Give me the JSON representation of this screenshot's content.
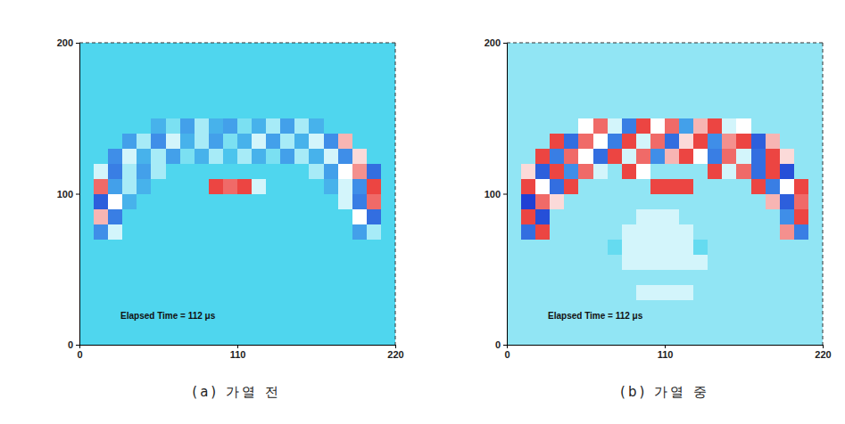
{
  "chart_data": [
    {
      "type": "heatmap",
      "title": "(a) 가열 전",
      "annotations": [
        "Elapsed Time = 112 μs"
      ],
      "xlim": [
        0,
        220
      ],
      "ylim": [
        0,
        200
      ],
      "xticks": [
        0,
        110,
        220
      ],
      "yticks": [
        0,
        100,
        200
      ],
      "z": [
        [
          0,
          0,
          0,
          0,
          0,
          0,
          0,
          0,
          0,
          0,
          0,
          0,
          0,
          0,
          0,
          0,
          0,
          0,
          0,
          0,
          0,
          0
        ],
        [
          0,
          0,
          0,
          0,
          0,
          0,
          0,
          0,
          0,
          0,
          0,
          0,
          0,
          0,
          0,
          0,
          0,
          0,
          0,
          0,
          0,
          0
        ],
        [
          0,
          0,
          0,
          0,
          0,
          0,
          0,
          0,
          0,
          0,
          0,
          0,
          0,
          0,
          0,
          0,
          0,
          0,
          0,
          0,
          0,
          0
        ],
        [
          0,
          0,
          0,
          0,
          0,
          0,
          0,
          0,
          0,
          0,
          0,
          0,
          0,
          0,
          0,
          0,
          0,
          0,
          0,
          0,
          0,
          0
        ],
        [
          0,
          0,
          0,
          0,
          0,
          0,
          0,
          0,
          0,
          0,
          0,
          0,
          0,
          0,
          0,
          0,
          0,
          0,
          0,
          0,
          0,
          0
        ],
        [
          0,
          0,
          0,
          0,
          0,
          0,
          0,
          0,
          0,
          0,
          0,
          0,
          0,
          0,
          0,
          0,
          0,
          0,
          0,
          0,
          0,
          0
        ],
        [
          0,
          0,
          0,
          0,
          0,
          0,
          0,
          0,
          0,
          0,
          0,
          0,
          0,
          0,
          0,
          0,
          0,
          0,
          0,
          0,
          0,
          0
        ],
        [
          0,
          -0.4,
          0.3,
          0,
          0,
          0,
          0,
          0,
          0,
          0,
          0,
          0,
          0,
          0,
          0,
          0,
          0,
          0,
          0,
          -0.3,
          0.2,
          0
        ],
        [
          0,
          0.6,
          -0.5,
          0,
          0,
          0,
          0,
          0,
          0,
          0,
          0,
          0,
          0,
          0,
          0,
          0,
          0,
          0,
          0,
          0.4,
          -0.6,
          0
        ],
        [
          0,
          -0.7,
          0.4,
          -0.2,
          0,
          0,
          0,
          0,
          0,
          0,
          0,
          0,
          0,
          0,
          0,
          0,
          0,
          0,
          0.3,
          -0.5,
          0.8,
          0
        ],
        [
          0,
          0.8,
          -0.3,
          0.2,
          -0.2,
          0,
          0,
          0,
          0,
          0.9,
          0.8,
          0.9,
          0.3,
          0,
          0,
          0,
          0,
          -0.2,
          0.3,
          -0.4,
          0.9,
          0
        ],
        [
          0,
          0.3,
          -0.5,
          0.2,
          -0.3,
          0.2,
          0,
          0,
          0,
          0,
          0,
          0,
          0,
          0,
          0,
          0,
          0.2,
          -0.3,
          0.4,
          0.7,
          -0.6,
          0
        ],
        [
          0,
          0,
          -0.4,
          0.3,
          -0.2,
          0.2,
          -0.3,
          0.1,
          -0.2,
          0.2,
          -0.1,
          0.2,
          -0.2,
          0.1,
          -0.3,
          0.2,
          -0.2,
          0.3,
          -0.4,
          0.5,
          0,
          0
        ],
        [
          0,
          0,
          0,
          -0.3,
          0.2,
          -0.4,
          0.3,
          -0.2,
          0.2,
          -0.3,
          0.1,
          -0.2,
          0.3,
          -0.3,
          0.2,
          -0.2,
          0.3,
          -0.4,
          0.6,
          0,
          0,
          0
        ],
        [
          0,
          0,
          0,
          0,
          0,
          -0.2,
          0.1,
          -0.3,
          0.2,
          -0.2,
          -0.3,
          0.1,
          -0.2,
          0.2,
          -0.3,
          0.2,
          -0.2,
          0,
          0,
          0,
          0,
          0
        ],
        [
          0,
          0,
          0,
          0,
          0,
          0,
          0,
          0,
          0,
          0,
          0,
          0,
          0,
          0,
          0,
          0,
          0,
          0,
          0,
          0,
          0,
          0
        ],
        [
          0,
          0,
          0,
          0,
          0,
          0,
          0,
          0,
          0,
          0,
          0,
          0,
          0,
          0,
          0,
          0,
          0,
          0,
          0,
          0,
          0,
          0
        ],
        [
          0,
          0,
          0,
          0,
          0,
          0,
          0,
          0,
          0,
          0,
          0,
          0,
          0,
          0,
          0,
          0,
          0,
          0,
          0,
          0,
          0,
          0
        ],
        [
          0,
          0,
          0,
          0,
          0,
          0,
          0,
          0,
          0,
          0,
          0,
          0,
          0,
          0,
          0,
          0,
          0,
          0,
          0,
          0,
          0,
          0
        ],
        [
          0,
          0,
          0,
          0,
          0,
          0,
          0,
          0,
          0,
          0,
          0,
          0,
          0,
          0,
          0,
          0,
          0,
          0,
          0,
          0,
          0,
          0
        ]
      ]
    },
    {
      "type": "heatmap",
      "title": "(b) 가열 중",
      "annotations": [
        "Elapsed Time = 112 μs"
      ],
      "xlim": [
        0,
        220
      ],
      "ylim": [
        0,
        200
      ],
      "xticks": [
        0,
        110,
        220
      ],
      "yticks": [
        0,
        100,
        200
      ],
      "z": [
        [
          0.15,
          0.15,
          0.15,
          0.15,
          0.15,
          0.15,
          0.15,
          0.15,
          0.15,
          0.15,
          0.15,
          0.15,
          0.15,
          0.15,
          0.15,
          0.15,
          0.15,
          0.15,
          0.15,
          0.15,
          0.15,
          0.15
        ],
        [
          0.15,
          0.15,
          0.15,
          0.15,
          0.15,
          0.15,
          0.15,
          0.15,
          0.15,
          0.15,
          0.15,
          0.15,
          0.15,
          0.15,
          0.15,
          0.15,
          0.15,
          0.15,
          0.15,
          0.15,
          0.15,
          0.15
        ],
        [
          0.15,
          0.15,
          0.15,
          0.15,
          0.15,
          0.15,
          0.15,
          0.15,
          0.15,
          0.15,
          0.15,
          0.15,
          0.15,
          0.15,
          0.15,
          0.15,
          0.15,
          0.15,
          0.15,
          0.15,
          0.15,
          0.15
        ],
        [
          0.15,
          0.15,
          0.15,
          0.15,
          0.15,
          0.15,
          0.15,
          0.15,
          0.15,
          0.3,
          0.3,
          0.3,
          0.3,
          0.15,
          0.15,
          0.15,
          0.15,
          0.15,
          0.15,
          0.15,
          0.15,
          0.15
        ],
        [
          0.15,
          0.15,
          0.15,
          0.15,
          0.15,
          0.15,
          0.15,
          0.15,
          0.15,
          0.15,
          0.15,
          0.15,
          0.15,
          0.15,
          0.15,
          0.15,
          0.15,
          0.15,
          0.15,
          0.15,
          0.15,
          0.15
        ],
        [
          0.15,
          0.15,
          0.15,
          0.15,
          0.15,
          0.15,
          0.15,
          0.15,
          0.3,
          0.3,
          0.3,
          0.3,
          0.3,
          0.3,
          0.15,
          0.15,
          0.15,
          0.15,
          0.15,
          0.15,
          0.15,
          0.15
        ],
        [
          0.15,
          0.15,
          0.15,
          0.15,
          0.15,
          0.15,
          0.15,
          0.05,
          0.3,
          0.3,
          0.3,
          0.3,
          0.3,
          0.05,
          0.15,
          0.15,
          0.15,
          0.15,
          0.15,
          0.15,
          0.15,
          0.15
        ],
        [
          0.15,
          -0.6,
          0.9,
          0.15,
          0.15,
          0.15,
          0.15,
          0.15,
          0.3,
          0.3,
          0.3,
          0.3,
          0.3,
          0.15,
          0.15,
          0.15,
          0.15,
          0.15,
          0.15,
          0.7,
          -0.5,
          0.15
        ],
        [
          0.15,
          0.9,
          -0.8,
          0.15,
          0.15,
          0.15,
          0.15,
          0.15,
          0.15,
          0.3,
          0.3,
          0.3,
          0.15,
          0.15,
          0.15,
          0.15,
          0.15,
          0.15,
          0.15,
          -0.4,
          0.9,
          0.15
        ],
        [
          0.15,
          -0.9,
          0.8,
          0.5,
          0.15,
          0.15,
          0.15,
          0.15,
          0.15,
          0.15,
          0.15,
          0.15,
          0.15,
          0.15,
          0.15,
          0.15,
          0.15,
          0.15,
          0.6,
          -0.7,
          0.8,
          0.15
        ],
        [
          0.15,
          0.9,
          0.4,
          -0.6,
          0.9,
          0.15,
          0.15,
          0.15,
          0.15,
          0.15,
          0.9,
          0.9,
          0.9,
          0.15,
          0.15,
          0.15,
          0.15,
          0.9,
          -0.5,
          0.4,
          0.9,
          0.15
        ],
        [
          0.15,
          0.5,
          -0.7,
          0.9,
          -0.4,
          0.8,
          0.3,
          0.15,
          0.9,
          0.4,
          0.15,
          0.15,
          0.15,
          0.15,
          0.9,
          0.3,
          0.8,
          -0.6,
          0.9,
          -0.8,
          0.15,
          0.15
        ],
        [
          0.15,
          0.15,
          0.9,
          -0.5,
          0.8,
          0.4,
          -0.6,
          0.9,
          0.3,
          0.8,
          -0.4,
          0.6,
          0.9,
          0.4,
          -0.5,
          0.8,
          0.3,
          -0.6,
          0.9,
          0.5,
          0.15,
          0.15
        ],
        [
          0.15,
          0.15,
          0.15,
          0.9,
          -0.6,
          0.8,
          0.4,
          -0.5,
          0.9,
          0.3,
          0.8,
          -0.6,
          0.5,
          0.9,
          -0.4,
          0.7,
          0.9,
          -0.7,
          0.6,
          0.15,
          0.15,
          0.15
        ],
        [
          0.15,
          0.15,
          0.15,
          0.15,
          0.15,
          0.4,
          0.8,
          0.3,
          -0.5,
          0.9,
          0.4,
          0.8,
          -0.3,
          0.6,
          0.9,
          0.3,
          0.4,
          0.15,
          0.15,
          0.15,
          0.15,
          0.15
        ],
        [
          0.15,
          0.15,
          0.15,
          0.15,
          0.15,
          0.15,
          0.15,
          0.15,
          0.15,
          0.15,
          0.15,
          0.15,
          0.15,
          0.15,
          0.15,
          0.15,
          0.15,
          0.15,
          0.15,
          0.15,
          0.15,
          0.15
        ],
        [
          0.15,
          0.15,
          0.15,
          0.15,
          0.15,
          0.15,
          0.15,
          0.15,
          0.15,
          0.15,
          0.15,
          0.15,
          0.15,
          0.15,
          0.15,
          0.15,
          0.15,
          0.15,
          0.15,
          0.15,
          0.15,
          0.15
        ],
        [
          0.15,
          0.15,
          0.15,
          0.15,
          0.15,
          0.15,
          0.15,
          0.15,
          0.15,
          0.15,
          0.15,
          0.15,
          0.15,
          0.15,
          0.15,
          0.15,
          0.15,
          0.15,
          0.15,
          0.15,
          0.15,
          0.15
        ],
        [
          0.15,
          0.15,
          0.15,
          0.15,
          0.15,
          0.15,
          0.15,
          0.15,
          0.15,
          0.15,
          0.15,
          0.15,
          0.15,
          0.15,
          0.15,
          0.15,
          0.15,
          0.15,
          0.15,
          0.15,
          0.15,
          0.15
        ],
        [
          0.15,
          0.15,
          0.15,
          0.15,
          0.15,
          0.15,
          0.15,
          0.15,
          0.15,
          0.15,
          0.15,
          0.15,
          0.15,
          0.15,
          0.15,
          0.15,
          0.15,
          0.15,
          0.15,
          0.15,
          0.15,
          0.15
        ]
      ]
    }
  ]
}
